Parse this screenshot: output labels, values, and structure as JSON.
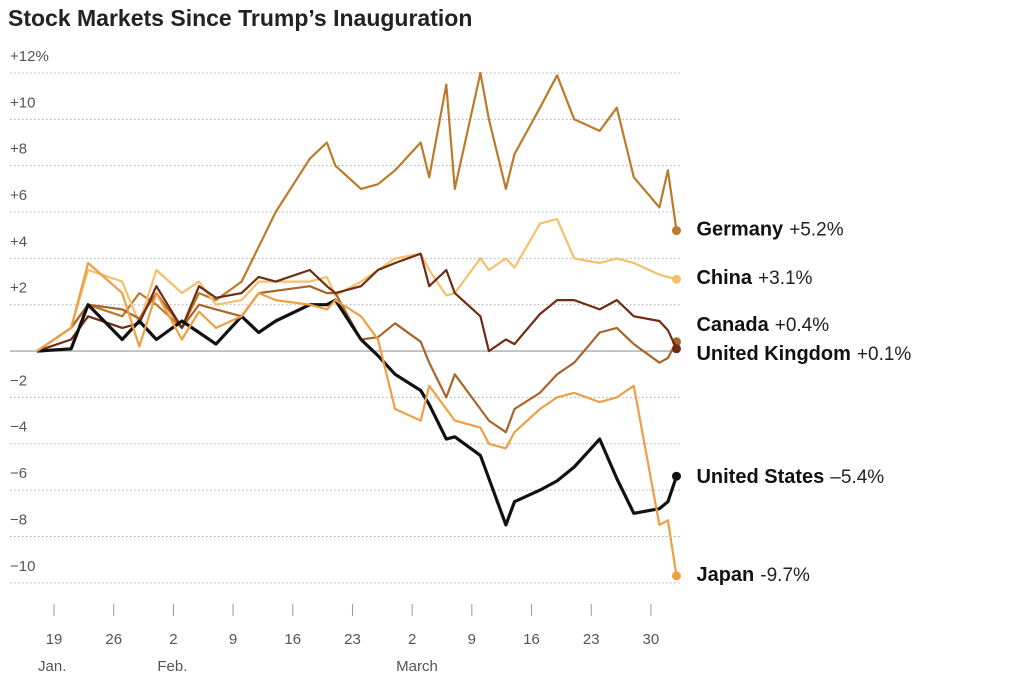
{
  "chart_data": {
    "type": "line",
    "title": "Stock Markets Since Trump’s Inauguration",
    "x": [
      "Jan 17",
      "Jan 21",
      "Jan 23",
      "Jan 27",
      "Jan 29",
      "Jan 31",
      "Feb 3",
      "Feb 5",
      "Feb 7",
      "Feb 10",
      "Feb 12",
      "Feb 14",
      "Feb 18",
      "Feb 20",
      "Feb 21",
      "Feb 24",
      "Feb 26",
      "Feb 28",
      "Mar 3",
      "Mar 4",
      "Mar 6",
      "Mar 7",
      "Mar 10",
      "Mar 11",
      "Mar 13",
      "Mar 14",
      "Mar 17",
      "Mar 19",
      "Mar 21",
      "Mar 24",
      "Mar 26",
      "Mar 28",
      "Mar 31",
      "Apr 1",
      "Apr 2"
    ],
    "xlim": [
      "Jan 14",
      "Apr 3"
    ],
    "xticks": [
      {
        "value": "Jan 19",
        "label": "19"
      },
      {
        "value": "Jan 26",
        "label": "26"
      },
      {
        "value": "Feb 2",
        "label": "2"
      },
      {
        "value": "Feb 9",
        "label": "9"
      },
      {
        "value": "Feb 16",
        "label": "16"
      },
      {
        "value": "Feb 23",
        "label": "23"
      },
      {
        "value": "Mar 2",
        "label": "2"
      },
      {
        "value": "Mar 9",
        "label": "9"
      },
      {
        "value": "Mar 16",
        "label": "16"
      },
      {
        "value": "Mar 23",
        "label": "23"
      },
      {
        "value": "Mar 30",
        "label": "30"
      }
    ],
    "x_month_labels": [
      "Jan.",
      null,
      "Feb.",
      null,
      null,
      null,
      "March",
      null,
      null,
      null,
      null
    ],
    "ylim": [
      -11,
      12.5
    ],
    "yticks": [
      {
        "value": -10,
        "label": "−10"
      },
      {
        "value": -8,
        "label": "−8"
      },
      {
        "value": -6,
        "label": "−6"
      },
      {
        "value": -4,
        "label": "−4"
      },
      {
        "value": -2,
        "label": "−2"
      },
      {
        "value": 2,
        "label": "+2"
      },
      {
        "value": 4,
        "label": "+4"
      },
      {
        "value": 6,
        "label": "+6"
      },
      {
        "value": 8,
        "label": "+8"
      },
      {
        "value": 10,
        "label": "+10"
      },
      {
        "value": 12,
        "label": "+12%"
      }
    ],
    "grid": true,
    "series": [
      {
        "name": "Germany",
        "color": "#bd7a2b",
        "end_label": "+5.2%",
        "values": [
          0,
          1,
          2,
          1.5,
          2.5,
          2,
          1,
          2.5,
          2.2,
          3,
          4.5,
          6,
          8.3,
          9,
          8,
          7,
          7.2,
          7.8,
          9,
          7.5,
          11.5,
          7,
          12,
          10,
          7,
          8.5,
          10.5,
          11.9,
          10,
          9.5,
          10.5,
          7.5,
          6.2,
          7.8,
          5.2
        ]
      },
      {
        "name": "China",
        "color": "#f5bf6b",
        "end_label": "+3.1%",
        "values": [
          0,
          1,
          3.5,
          3,
          1.2,
          3.5,
          2.5,
          3,
          2,
          2.2,
          3,
          3,
          3,
          3.2,
          2.4,
          3,
          3.5,
          4,
          4.2,
          3.5,
          2.4,
          2.5,
          4,
          3.5,
          4,
          3.6,
          5.5,
          5.7,
          4,
          3.8,
          4,
          3.8,
          3.3,
          3.2,
          3.1
        ]
      },
      {
        "name": "Canada",
        "color": "#a9642a",
        "end_label": "+0.4%",
        "values": [
          0,
          1,
          2,
          1.8,
          1.4,
          2.5,
          1,
          2,
          1.8,
          1.5,
          2.5,
          2.6,
          2.8,
          2.5,
          2.5,
          0.5,
          0.6,
          1.2,
          0.4,
          -0.5,
          -2,
          -1,
          -2.5,
          -3,
          -3.5,
          -2.5,
          -1.8,
          -1,
          -0.5,
          0.8,
          1,
          0.3,
          -0.5,
          -0.3,
          0.4
        ]
      },
      {
        "name": "United Kingdom",
        "color": "#6e2c12",
        "end_label": "+0.1%",
        "values": [
          0,
          0.5,
          1.5,
          1,
          1.2,
          2.8,
          1,
          2.8,
          2.3,
          2.5,
          3.2,
          3,
          3.5,
          2.8,
          2.5,
          2.8,
          3.5,
          3.8,
          4.2,
          2.8,
          3.5,
          2.5,
          1.5,
          0,
          0.5,
          0.3,
          1.6,
          2.2,
          2.2,
          1.8,
          2.2,
          1.5,
          1.3,
          0.9,
          0.1
        ]
      },
      {
        "name": "United States",
        "color": "#111111",
        "end_label": "–5.4%",
        "values": [
          0,
          0.1,
          2,
          0.5,
          1.3,
          0.5,
          1.3,
          0.8,
          0.3,
          1.5,
          0.8,
          1.3,
          2,
          2,
          2.2,
          0.5,
          -0.2,
          -1,
          -1.7,
          -2.3,
          -3.8,
          -3.7,
          -4.5,
          -5.5,
          -7.5,
          -6.5,
          -6,
          -5.6,
          -5,
          -3.8,
          -5.5,
          -7,
          -6.8,
          -6.5,
          -5.4
        ]
      },
      {
        "name": "Japan",
        "color": "#ee9f45",
        "end_label": "-9.7%",
        "values": [
          0,
          1,
          3.8,
          2.5,
          0.2,
          2.5,
          0.5,
          1.7,
          1,
          1.5,
          2.5,
          2.2,
          2,
          1.8,
          2.2,
          1.5,
          0.5,
          -2.5,
          -3,
          -1.5,
          -2.5,
          -3,
          -3.3,
          -4,
          -4.2,
          -3.5,
          -2.5,
          -2,
          -1.8,
          -2.2,
          -2,
          -1.5,
          -7.5,
          -7.3,
          -9.7
        ]
      }
    ]
  }
}
